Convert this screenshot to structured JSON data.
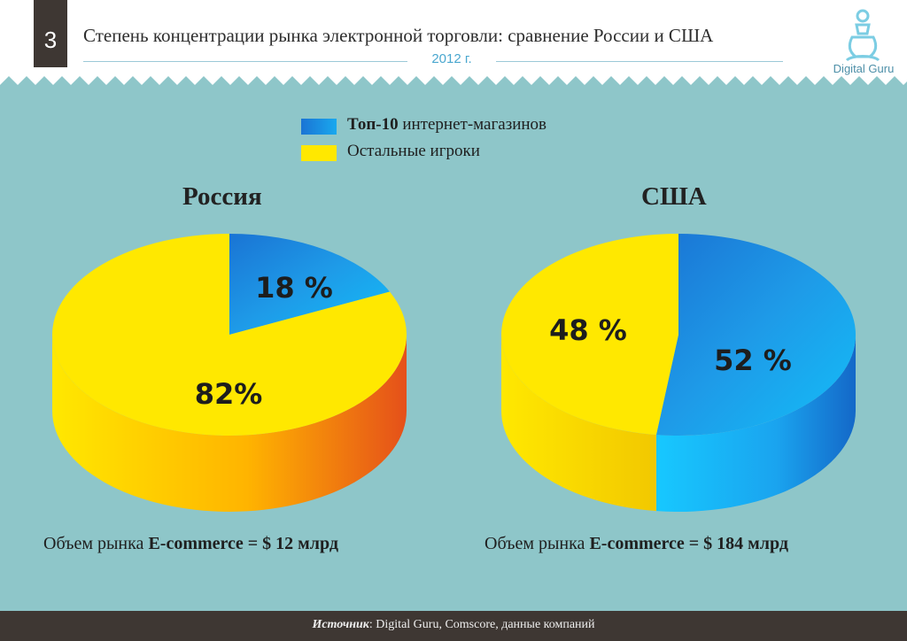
{
  "header": {
    "slide_number": "3",
    "title": "Степень концентрации рынка электронной торговли: сравнение России и США",
    "year": "2012 г.",
    "logo_text": "Digital Guru",
    "logo_icon": "meditating-guru-icon"
  },
  "legend": [
    {
      "bold": "Топ-10",
      "text": " интернет-магазинов",
      "color": "#1e8fe0"
    },
    {
      "bold": "",
      "text": "Остальные игроки",
      "color": "#ffe800"
    }
  ],
  "colors": {
    "background": "#8ec6c9",
    "top10": "#1e8fe0",
    "others": "#ffe800",
    "footer": "#3e3733"
  },
  "chart_data": [
    {
      "type": "pie",
      "title": "Россия",
      "slices": [
        {
          "name": "Топ-10 интернет-магазинов",
          "value": 18,
          "label": "18 %"
        },
        {
          "name": "Остальные игроки",
          "value": 82,
          "label": "82%"
        }
      ],
      "volume_prefix": "Объем рынка ",
      "volume_bold": "E-commerce = $ 12 млрд"
    },
    {
      "type": "pie",
      "title": "США",
      "slices": [
        {
          "name": "Топ-10 интернет-магазинов",
          "value": 52,
          "label": "52 %"
        },
        {
          "name": "Остальные игроки",
          "value": 48,
          "label": "48 %"
        }
      ],
      "volume_prefix": "Объем рынка ",
      "volume_bold": "E-commerce = $ 184 млрд"
    }
  ],
  "footer": {
    "label": "Источник",
    "text": ": Digital Guru, Comscore, данные компаний"
  }
}
